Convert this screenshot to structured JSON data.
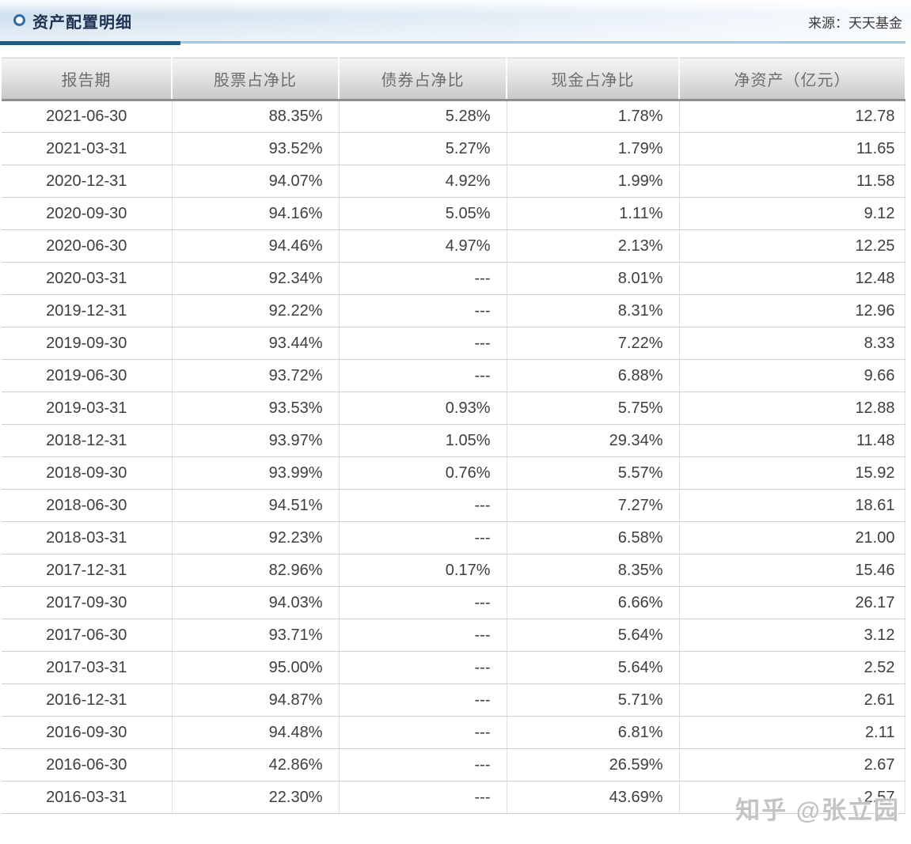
{
  "header": {
    "title": "资产配置明细",
    "source_label": "来源：天天基金"
  },
  "watermark": "知乎 @张立园",
  "colors": {
    "accent_dark_rule": "#1f5c80",
    "accent_light_rule": "#aac8dc",
    "bullet_ring": "#2c6ca6",
    "title_text": "#1d3250",
    "header_text": "#6e6e6e",
    "cell_text": "#3e3e3e",
    "topbar_tint": "#cfe0ef"
  },
  "table": {
    "columns": [
      "报告期",
      "股票占净比",
      "债券占净比",
      "现金占净比",
      "净资产（亿元）"
    ],
    "column_keys": [
      "report-date",
      "stock-pct-of-net",
      "bond-pct-of-net",
      "cash-pct-of-net",
      "net-assets-100m"
    ],
    "empty_value": "---",
    "rows": [
      [
        "2021-06-30",
        "88.35%",
        "5.28%",
        "1.78%",
        "12.78"
      ],
      [
        "2021-03-31",
        "93.52%",
        "5.27%",
        "1.79%",
        "11.65"
      ],
      [
        "2020-12-31",
        "94.07%",
        "4.92%",
        "1.99%",
        "11.58"
      ],
      [
        "2020-09-30",
        "94.16%",
        "5.05%",
        "1.11%",
        "9.12"
      ],
      [
        "2020-06-30",
        "94.46%",
        "4.97%",
        "2.13%",
        "12.25"
      ],
      [
        "2020-03-31",
        "92.34%",
        "---",
        "8.01%",
        "12.48"
      ],
      [
        "2019-12-31",
        "92.22%",
        "---",
        "8.31%",
        "12.96"
      ],
      [
        "2019-09-30",
        "93.44%",
        "---",
        "7.22%",
        "8.33"
      ],
      [
        "2019-06-30",
        "93.72%",
        "---",
        "6.88%",
        "9.66"
      ],
      [
        "2019-03-31",
        "93.53%",
        "0.93%",
        "5.75%",
        "12.88"
      ],
      [
        "2018-12-31",
        "93.97%",
        "1.05%",
        "29.34%",
        "11.48"
      ],
      [
        "2018-09-30",
        "93.99%",
        "0.76%",
        "5.57%",
        "15.92"
      ],
      [
        "2018-06-30",
        "94.51%",
        "---",
        "7.27%",
        "18.61"
      ],
      [
        "2018-03-31",
        "92.23%",
        "---",
        "6.58%",
        "21.00"
      ],
      [
        "2017-12-31",
        "82.96%",
        "0.17%",
        "8.35%",
        "15.46"
      ],
      [
        "2017-09-30",
        "94.03%",
        "---",
        "6.66%",
        "26.17"
      ],
      [
        "2017-06-30",
        "93.71%",
        "---",
        "5.64%",
        "3.12"
      ],
      [
        "2017-03-31",
        "95.00%",
        "---",
        "5.64%",
        "2.52"
      ],
      [
        "2016-12-31",
        "94.87%",
        "---",
        "5.71%",
        "2.61"
      ],
      [
        "2016-09-30",
        "94.48%",
        "---",
        "6.81%",
        "2.11"
      ],
      [
        "2016-06-30",
        "42.86%",
        "---",
        "26.59%",
        "2.67"
      ],
      [
        "2016-03-31",
        "22.30%",
        "---",
        "43.69%",
        "2.57"
      ]
    ]
  }
}
